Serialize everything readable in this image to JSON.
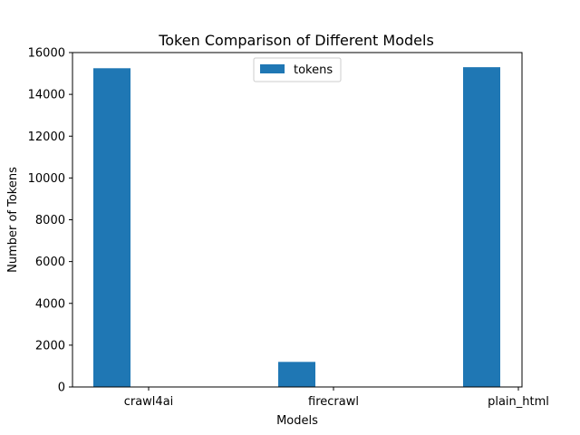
{
  "chart_data": {
    "type": "bar",
    "title": "Token Comparison of Different Models",
    "xlabel": "Models",
    "ylabel": "Number of Tokens",
    "categories": [
      "crawl4ai",
      "firecrawl",
      "plain_html"
    ],
    "series": [
      {
        "name": "tokens",
        "values": [
          15250,
          1200,
          15300
        ],
        "color": "#1f77b4"
      }
    ],
    "ylim": [
      0,
      16000
    ],
    "yticks": [
      0,
      2000,
      4000,
      6000,
      8000,
      10000,
      12000,
      14000,
      16000
    ],
    "ytick_labels": [
      "0",
      "2000",
      "4000",
      "6000",
      "8000",
      "10000",
      "12000",
      "14000",
      "16000"
    ],
    "grid": false,
    "legend_position": "top-center"
  }
}
